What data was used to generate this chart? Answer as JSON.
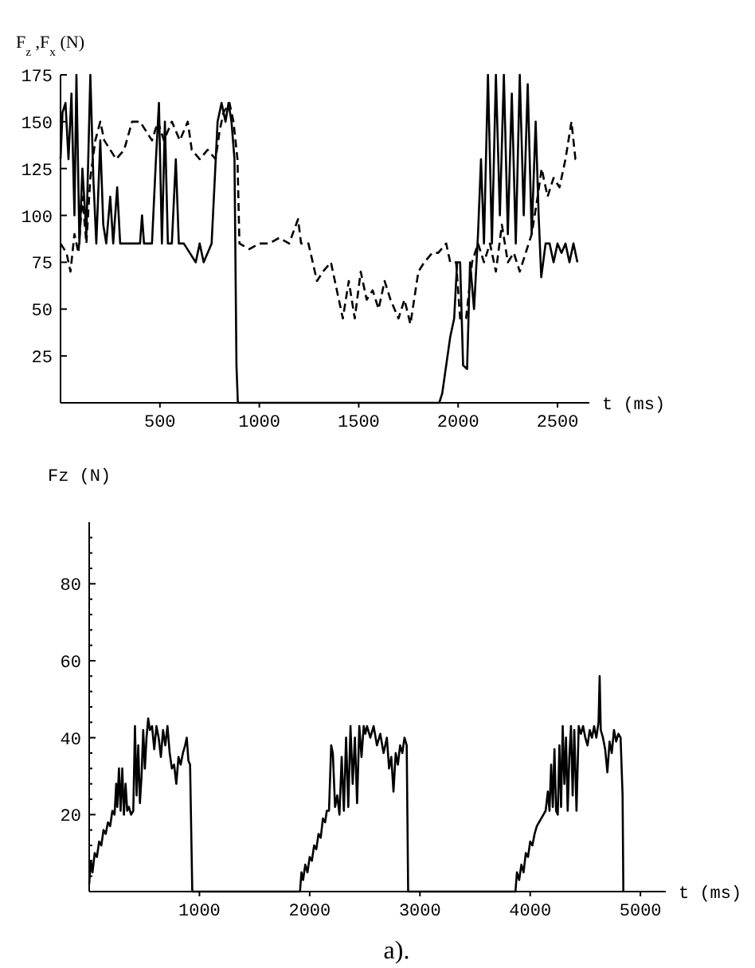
{
  "chart_data": [
    {
      "type": "line",
      "xlabel": "t (ms)",
      "ylabel": "F$_{z}$ ,F$_{x}$ (N)",
      "xlim": [
        0,
        2660
      ],
      "ylim": [
        0,
        175
      ],
      "xticks": [
        500,
        1000,
        1500,
        2000,
        2500
      ],
      "yticks": [
        25,
        50,
        75,
        100,
        125,
        150,
        175
      ],
      "series": [
        {
          "color": "#000000",
          "line_style": "solid",
          "x": [
            0,
            10,
            25,
            40,
            55,
            70,
            80,
            95,
            110,
            130,
            150,
            165,
            180,
            200,
            215,
            230,
            250,
            265,
            285,
            300,
            320,
            360,
            400,
            410,
            420,
            460,
            480,
            495,
            510,
            525,
            540,
            560,
            580,
            595,
            620,
            650,
            680,
            700,
            720,
            740,
            760,
            790,
            810,
            830,
            845,
            860,
            875,
            885,
            892,
            1500,
            1905,
            1920,
            1960,
            1980,
            1995,
            2010,
            2025,
            2045,
            2060,
            2080,
            2100,
            2115,
            2130,
            2150,
            2170,
            2190,
            2210,
            2230,
            2250,
            2270,
            2290,
            2310,
            2330,
            2350,
            2370,
            2390,
            2405,
            2418,
            2440,
            2460,
            2480,
            2500,
            2520,
            2540,
            2560,
            2580,
            2600
          ],
          "values": [
            130,
            155,
            160,
            130,
            165,
            100,
            175,
            85,
            125,
            90,
            175,
            120,
            85,
            140,
            95,
            85,
            110,
            85,
            115,
            85,
            85,
            85,
            85,
            100,
            85,
            85,
            130,
            160,
            85,
            150,
            85,
            85,
            130,
            85,
            85,
            80,
            75,
            85,
            75,
            80,
            85,
            150,
            160,
            150,
            160,
            150,
            130,
            20,
            0,
            0,
            0,
            5,
            35,
            45,
            75,
            75,
            20,
            18,
            75,
            50,
            90,
            130,
            85,
            175,
            85,
            175,
            100,
            175,
            90,
            165,
            85,
            175,
            100,
            170,
            90,
            150,
            100,
            67,
            85,
            85,
            75,
            85,
            80,
            85,
            75,
            85,
            75
          ]
        },
        {
          "color": "#000000",
          "line_style": "dashed",
          "x": [
            0,
            30,
            50,
            70,
            90,
            110,
            130,
            150,
            175,
            200,
            220,
            250,
            280,
            320,
            360,
            400,
            430,
            460,
            490,
            520,
            560,
            600,
            640,
            660,
            700,
            740,
            780,
            800,
            820,
            850,
            870,
            890,
            900,
            950,
            1000,
            1050,
            1100,
            1150,
            1195,
            1210,
            1247,
            1290,
            1320,
            1360,
            1390,
            1420,
            1450,
            1480,
            1510,
            1540,
            1570,
            1600,
            1630,
            1660,
            1700,
            1730,
            1760,
            1800,
            1830,
            1870,
            1900,
            1940,
            1960,
            1990,
            2010,
            2040,
            2070,
            2100,
            2130,
            2160,
            2190,
            2220,
            2250,
            2280,
            2310,
            2340,
            2370,
            2400,
            2420,
            2450,
            2480,
            2510,
            2540,
            2570,
            2590,
            2602
          ],
          "values": [
            85,
            80,
            70,
            90,
            80,
            110,
            85,
            120,
            140,
            150,
            140,
            135,
            130,
            135,
            150,
            150,
            145,
            140,
            150,
            140,
            150,
            140,
            150,
            135,
            130,
            135,
            130,
            145,
            155,
            160,
            150,
            130,
            85,
            82,
            85,
            85,
            88,
            85,
            98,
            85,
            85,
            65,
            70,
            75,
            60,
            45,
            65,
            45,
            70,
            55,
            60,
            50,
            65,
            55,
            45,
            55,
            42,
            70,
            75,
            80,
            80,
            85,
            75,
            75,
            45,
            45,
            75,
            85,
            75,
            85,
            70,
            95,
            75,
            80,
            70,
            80,
            90,
            110,
            125,
            110,
            120,
            115,
            130,
            150,
            130,
            130
          ]
        }
      ]
    },
    {
      "type": "line",
      "ylabel": "Fz  (N)",
      "xlabel": "t  (ms)",
      "xlim": [
        0,
        5230
      ],
      "ylim": [
        0,
        96
      ],
      "xticks": [
        1000,
        2000,
        3000,
        4000,
        5000
      ],
      "yticks": [
        {
          "value": 4,
          "label": null
        },
        {
          "value": 8,
          "label": null
        },
        {
          "value": 12,
          "label": null
        },
        {
          "value": 16,
          "label": null
        },
        20,
        {
          "value": 24,
          "label": null
        },
        {
          "value": 28,
          "label": null
        },
        {
          "value": 32,
          "label": null
        },
        {
          "value": 36,
          "label": null
        },
        40,
        {
          "value": 44,
          "label": null
        },
        {
          "value": 48,
          "label": null
        },
        {
          "value": 52,
          "label": null
        },
        {
          "value": 56,
          "label": null
        },
        60,
        {
          "value": 64,
          "label": null
        },
        {
          "value": 68,
          "label": null
        },
        {
          "value": 72,
          "label": null
        },
        {
          "value": 76,
          "label": null
        },
        80,
        {
          "value": 84,
          "label": null
        },
        {
          "value": 88,
          "label": null
        },
        {
          "value": 92,
          "label": null
        }
      ],
      "annotations": [
        "a)."
      ],
      "series": [
        {
          "color": "#000000",
          "line_style": "solid",
          "x": [
            0,
            15,
            30,
            50,
            70,
            90,
            110,
            130,
            150,
            170,
            190,
            210,
            230,
            245,
            255,
            270,
            285,
            300,
            315,
            330,
            345,
            360,
            380,
            400,
            415,
            430,
            445,
            460,
            475,
            490,
            505,
            520,
            535,
            550,
            570,
            590,
            610,
            630,
            650,
            670,
            690,
            710,
            730,
            750,
            770,
            790,
            810,
            830,
            850,
            870,
            885,
            900,
            915,
            935,
            1912,
            1925,
            1940,
            1960,
            1980,
            2000,
            2020,
            2040,
            2060,
            2080,
            2100,
            2120,
            2140,
            2155,
            2175,
            2195,
            2210,
            2230,
            2250,
            2270,
            2290,
            2310,
            2330,
            2350,
            2370,
            2390,
            2410,
            2430,
            2450,
            2470,
            2490,
            2505,
            2520,
            2550,
            2580,
            2610,
            2640,
            2670,
            2700,
            2720,
            2740,
            2760,
            2780,
            2800,
            2820,
            2840,
            2860,
            2880,
            2893,
            3866,
            3880,
            3900,
            3920,
            3940,
            3960,
            3980,
            4000,
            4020,
            4040,
            4060,
            4080,
            4100,
            4120,
            4140,
            4160,
            4175,
            4190,
            4205,
            4220,
            4235,
            4250,
            4265,
            4280,
            4295,
            4310,
            4325,
            4340,
            4355,
            4370,
            4385,
            4400,
            4420,
            4440,
            4460,
            4480,
            4500,
            4520,
            4540,
            4560,
            4580,
            4600,
            4620,
            4630,
            4640,
            4660,
            4680,
            4700,
            4720,
            4740,
            4760,
            4780,
            4800,
            4820,
            4838,
            4845
          ],
          "values": [
            2,
            8,
            5,
            10,
            9,
            13,
            12,
            16,
            15,
            18,
            17,
            21,
            20,
            28,
            22,
            32,
            21,
            32,
            20,
            28,
            21,
            22,
            20,
            21,
            43,
            25,
            38,
            23,
            30,
            42,
            32,
            40,
            45,
            42,
            43,
            37,
            43,
            40,
            35,
            42,
            38,
            43,
            36,
            32,
            33,
            28,
            35,
            33,
            36,
            38,
            40,
            34,
            33,
            0,
            0,
            5,
            3,
            7,
            5,
            9,
            8,
            12,
            11,
            15,
            14,
            19,
            18,
            21,
            21,
            38,
            36,
            22,
            25,
            20,
            35,
            21,
            40,
            22,
            43,
            28,
            40,
            23,
            43,
            35,
            43,
            41,
            43,
            40,
            43,
            38,
            41,
            36,
            40,
            32,
            35,
            26,
            36,
            33,
            38,
            36,
            40,
            38,
            0,
            0,
            5,
            3,
            7,
            5,
            10,
            9,
            13,
            12,
            15,
            17,
            18,
            19,
            20,
            21,
            26,
            21,
            33,
            22,
            37,
            21,
            20,
            38,
            22,
            43,
            28,
            40,
            21,
            35,
            43,
            25,
            42,
            21,
            43,
            41,
            43,
            40,
            38,
            42,
            40,
            43,
            40,
            44,
            56,
            42,
            40,
            37,
            31,
            39,
            36,
            42,
            39,
            41,
            40,
            25,
            0
          ]
        }
      ]
    }
  ]
}
